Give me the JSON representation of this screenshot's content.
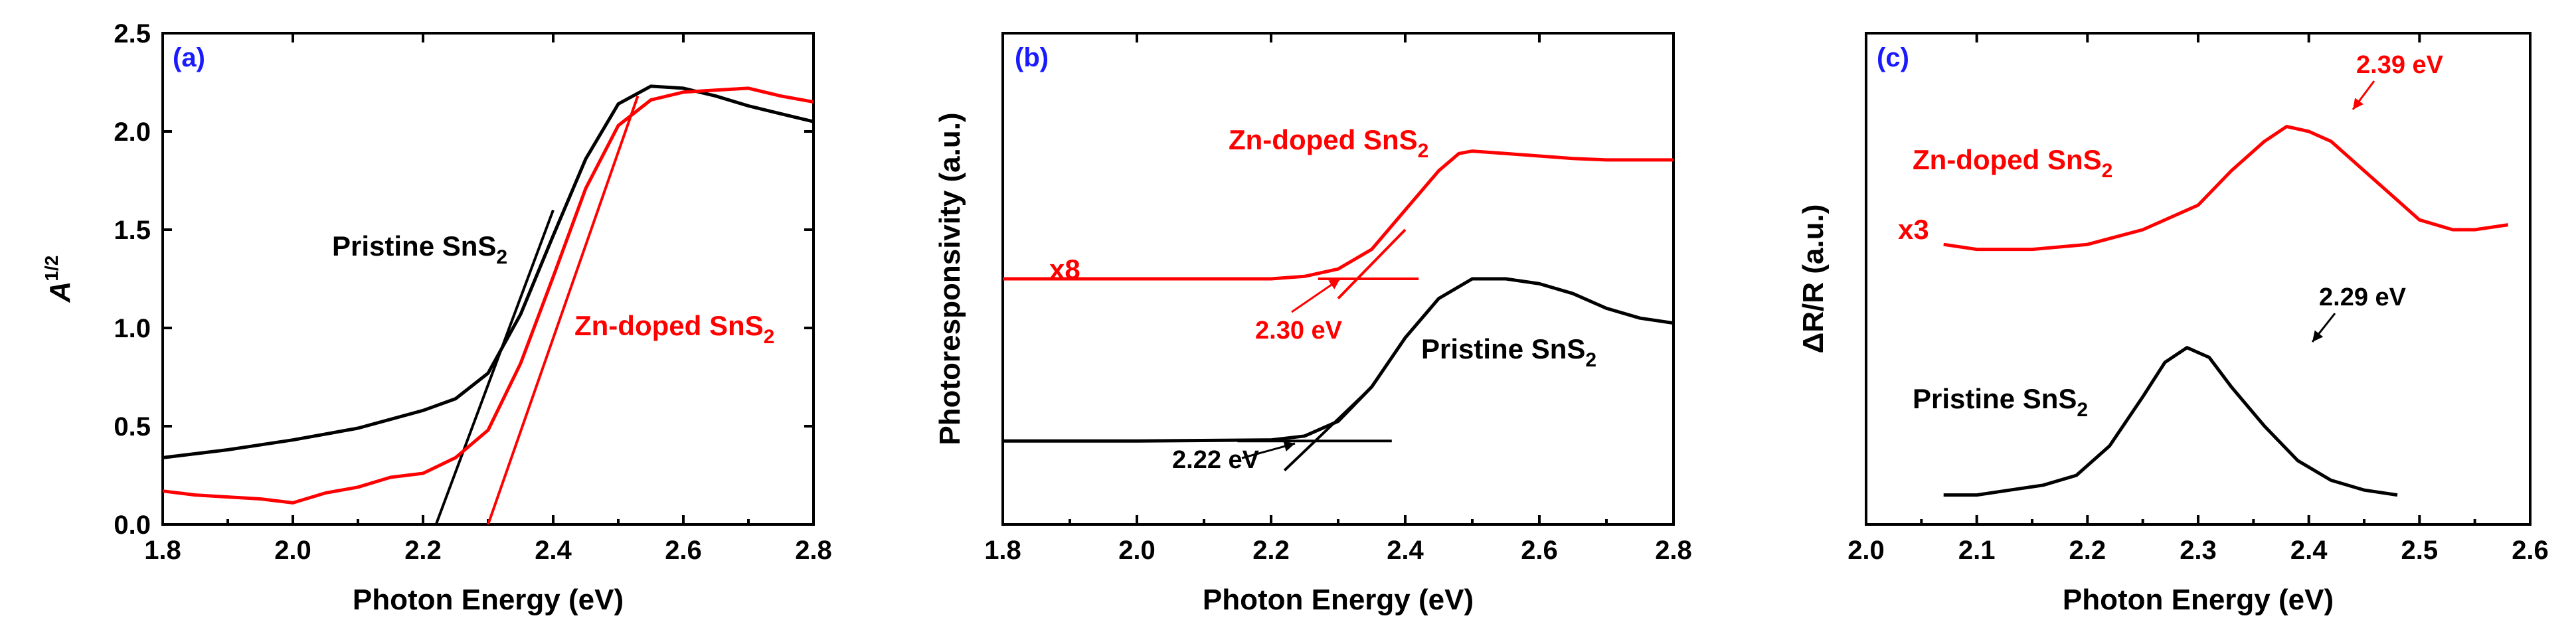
{
  "chart_data": [
    {
      "type": "line",
      "panel_label": "(a)",
      "xlabel": "Photon Energy (eV)",
      "ylabel": "A",
      "ylabel_sup": "1/2",
      "xlim": [
        1.8,
        2.8
      ],
      "ylim": [
        0.0,
        2.5
      ],
      "xticks": [
        1.8,
        2.0,
        2.2,
        2.4,
        2.6,
        2.8
      ],
      "yticks": [
        0.0,
        0.5,
        1.0,
        1.5,
        2.0,
        2.5
      ],
      "ytick_labels": [
        "0.0",
        "0.5",
        "1.0",
        "1.5",
        "2.0",
        "2.5"
      ],
      "xtick_labels": [
        "1.8",
        "2.0",
        "2.2",
        "2.4",
        "2.6",
        "2.8"
      ],
      "series": [
        {
          "name": "Pristine SnS2",
          "label_text": "Pristine SnS",
          "label_sub": "2",
          "color": "#000000",
          "x": [
            1.8,
            1.9,
            2.0,
            2.1,
            2.2,
            2.25,
            2.3,
            2.35,
            2.4,
            2.45,
            2.5,
            2.55,
            2.6,
            2.65,
            2.7,
            2.75,
            2.8
          ],
          "y": [
            0.34,
            0.38,
            0.43,
            0.49,
            0.58,
            0.64,
            0.77,
            1.07,
            1.47,
            1.86,
            2.14,
            2.23,
            2.22,
            2.18,
            2.13,
            2.09,
            2.05
          ]
        },
        {
          "name": "Zn-doped SnS2",
          "label_text": "Zn-doped SnS",
          "label_sub": "2",
          "color": "#ff0000",
          "x": [
            1.8,
            1.85,
            1.9,
            1.95,
            2.0,
            2.05,
            2.1,
            2.15,
            2.2,
            2.25,
            2.3,
            2.35,
            2.4,
            2.45,
            2.5,
            2.55,
            2.6,
            2.65,
            2.7,
            2.75,
            2.8
          ],
          "y": [
            0.17,
            0.15,
            0.14,
            0.13,
            0.11,
            0.16,
            0.19,
            0.24,
            0.26,
            0.34,
            0.48,
            0.82,
            1.26,
            1.71,
            2.03,
            2.16,
            2.2,
            2.21,
            2.22,
            2.18,
            2.15
          ]
        }
      ],
      "fit_lines": [
        {
          "color": "#000000",
          "x": [
            2.22,
            2.4
          ],
          "y": [
            0.0,
            1.6
          ]
        },
        {
          "color": "#ff0000",
          "x": [
            2.3,
            2.53
          ],
          "y": [
            0.0,
            2.18
          ]
        }
      ]
    },
    {
      "type": "line",
      "panel_label": "(b)",
      "xlabel": "Photon Energy (eV)",
      "ylabel": "Photoresponsivity (a.u.)",
      "xlim": [
        1.8,
        2.8
      ],
      "ylim": [
        0.0,
        1.0
      ],
      "xticks": [
        1.8,
        2.0,
        2.2,
        2.4,
        2.6,
        2.8
      ],
      "xtick_labels": [
        "1.8",
        "2.0",
        "2.2",
        "2.4",
        "2.6",
        "2.8"
      ],
      "multiplier_label": "x8",
      "series": [
        {
          "name": "Zn-doped SnS2",
          "label_text": "Zn-doped SnS",
          "label_sub": "2",
          "color": "#ff0000",
          "x": [
            1.8,
            2.0,
            2.2,
            2.25,
            2.3,
            2.35,
            2.4,
            2.45,
            2.48,
            2.5,
            2.55,
            2.6,
            2.65,
            2.7,
            2.8
          ],
          "y": [
            0.5,
            0.5,
            0.5,
            0.505,
            0.52,
            0.56,
            0.64,
            0.72,
            0.755,
            0.76,
            0.755,
            0.75,
            0.745,
            0.742,
            0.742
          ]
        },
        {
          "name": "Pristine SnS2",
          "label_text": "Pristine SnS",
          "label_sub": "2",
          "color": "#000000",
          "x": [
            1.8,
            2.0,
            2.2,
            2.25,
            2.3,
            2.35,
            2.4,
            2.45,
            2.5,
            2.55,
            2.6,
            2.65,
            2.7,
            2.75,
            2.8
          ],
          "y": [
            0.17,
            0.17,
            0.172,
            0.18,
            0.21,
            0.28,
            0.38,
            0.46,
            0.5,
            0.5,
            0.49,
            0.47,
            0.44,
            0.42,
            0.41
          ]
        }
      ],
      "fit_lines": [
        {
          "color": "#ff0000",
          "x": [
            2.27,
            2.42
          ],
          "y": [
            0.5,
            0.5
          ]
        },
        {
          "color": "#ff0000",
          "x": [
            2.3,
            2.4
          ],
          "y": [
            0.46,
            0.6
          ]
        },
        {
          "color": "#000000",
          "x": [
            2.15,
            2.38
          ],
          "y": [
            0.17,
            0.17
          ]
        },
        {
          "color": "#000000",
          "x": [
            2.22,
            2.35
          ],
          "y": [
            0.11,
            0.28
          ]
        }
      ],
      "annotations": [
        {
          "text": "2.30 eV",
          "color": "#ff0000",
          "x": 2.3,
          "y": 0.5
        },
        {
          "text": "2.22 eV",
          "color": "#000000",
          "x": 2.22,
          "y": 0.17
        }
      ]
    },
    {
      "type": "line",
      "panel_label": "(c)",
      "xlabel": "Photon Energy (eV)",
      "ylabel": "ΔR/R (a.u.)",
      "xlim": [
        2.0,
        2.6
      ],
      "ylim": [
        0.0,
        1.0
      ],
      "xticks": [
        2.0,
        2.1,
        2.2,
        2.3,
        2.4,
        2.5,
        2.6
      ],
      "xtick_labels": [
        "2.0",
        "2.1",
        "2.2",
        "2.3",
        "2.4",
        "2.5",
        "2.6"
      ],
      "multiplier_label": "x3",
      "series": [
        {
          "name": "Zn-doped SnS2",
          "label_text": "Zn-doped SnS",
          "label_sub": "2",
          "color": "#ff0000",
          "x": [
            2.07,
            2.1,
            2.15,
            2.2,
            2.25,
            2.3,
            2.33,
            2.36,
            2.38,
            2.4,
            2.42,
            2.45,
            2.48,
            2.5,
            2.53,
            2.55,
            2.58
          ],
          "y": [
            0.57,
            0.56,
            0.56,
            0.57,
            0.6,
            0.65,
            0.72,
            0.78,
            0.81,
            0.8,
            0.78,
            0.72,
            0.66,
            0.62,
            0.6,
            0.6,
            0.61
          ]
        },
        {
          "name": "Pristine SnS2",
          "label_text": "Pristine SnS",
          "label_sub": "2",
          "color": "#000000",
          "x": [
            2.07,
            2.1,
            2.13,
            2.16,
            2.19,
            2.22,
            2.25,
            2.27,
            2.29,
            2.31,
            2.33,
            2.36,
            2.39,
            2.42,
            2.45,
            2.48
          ],
          "y": [
            0.06,
            0.06,
            0.07,
            0.08,
            0.1,
            0.16,
            0.26,
            0.33,
            0.36,
            0.34,
            0.28,
            0.2,
            0.13,
            0.09,
            0.07,
            0.06
          ]
        }
      ],
      "annotations": [
        {
          "text": "2.39 eV",
          "color": "#ff0000",
          "x": 2.39,
          "y": 0.81
        },
        {
          "text": "2.29 eV",
          "color": "#000000",
          "x": 2.29,
          "y": 0.36
        }
      ]
    }
  ]
}
